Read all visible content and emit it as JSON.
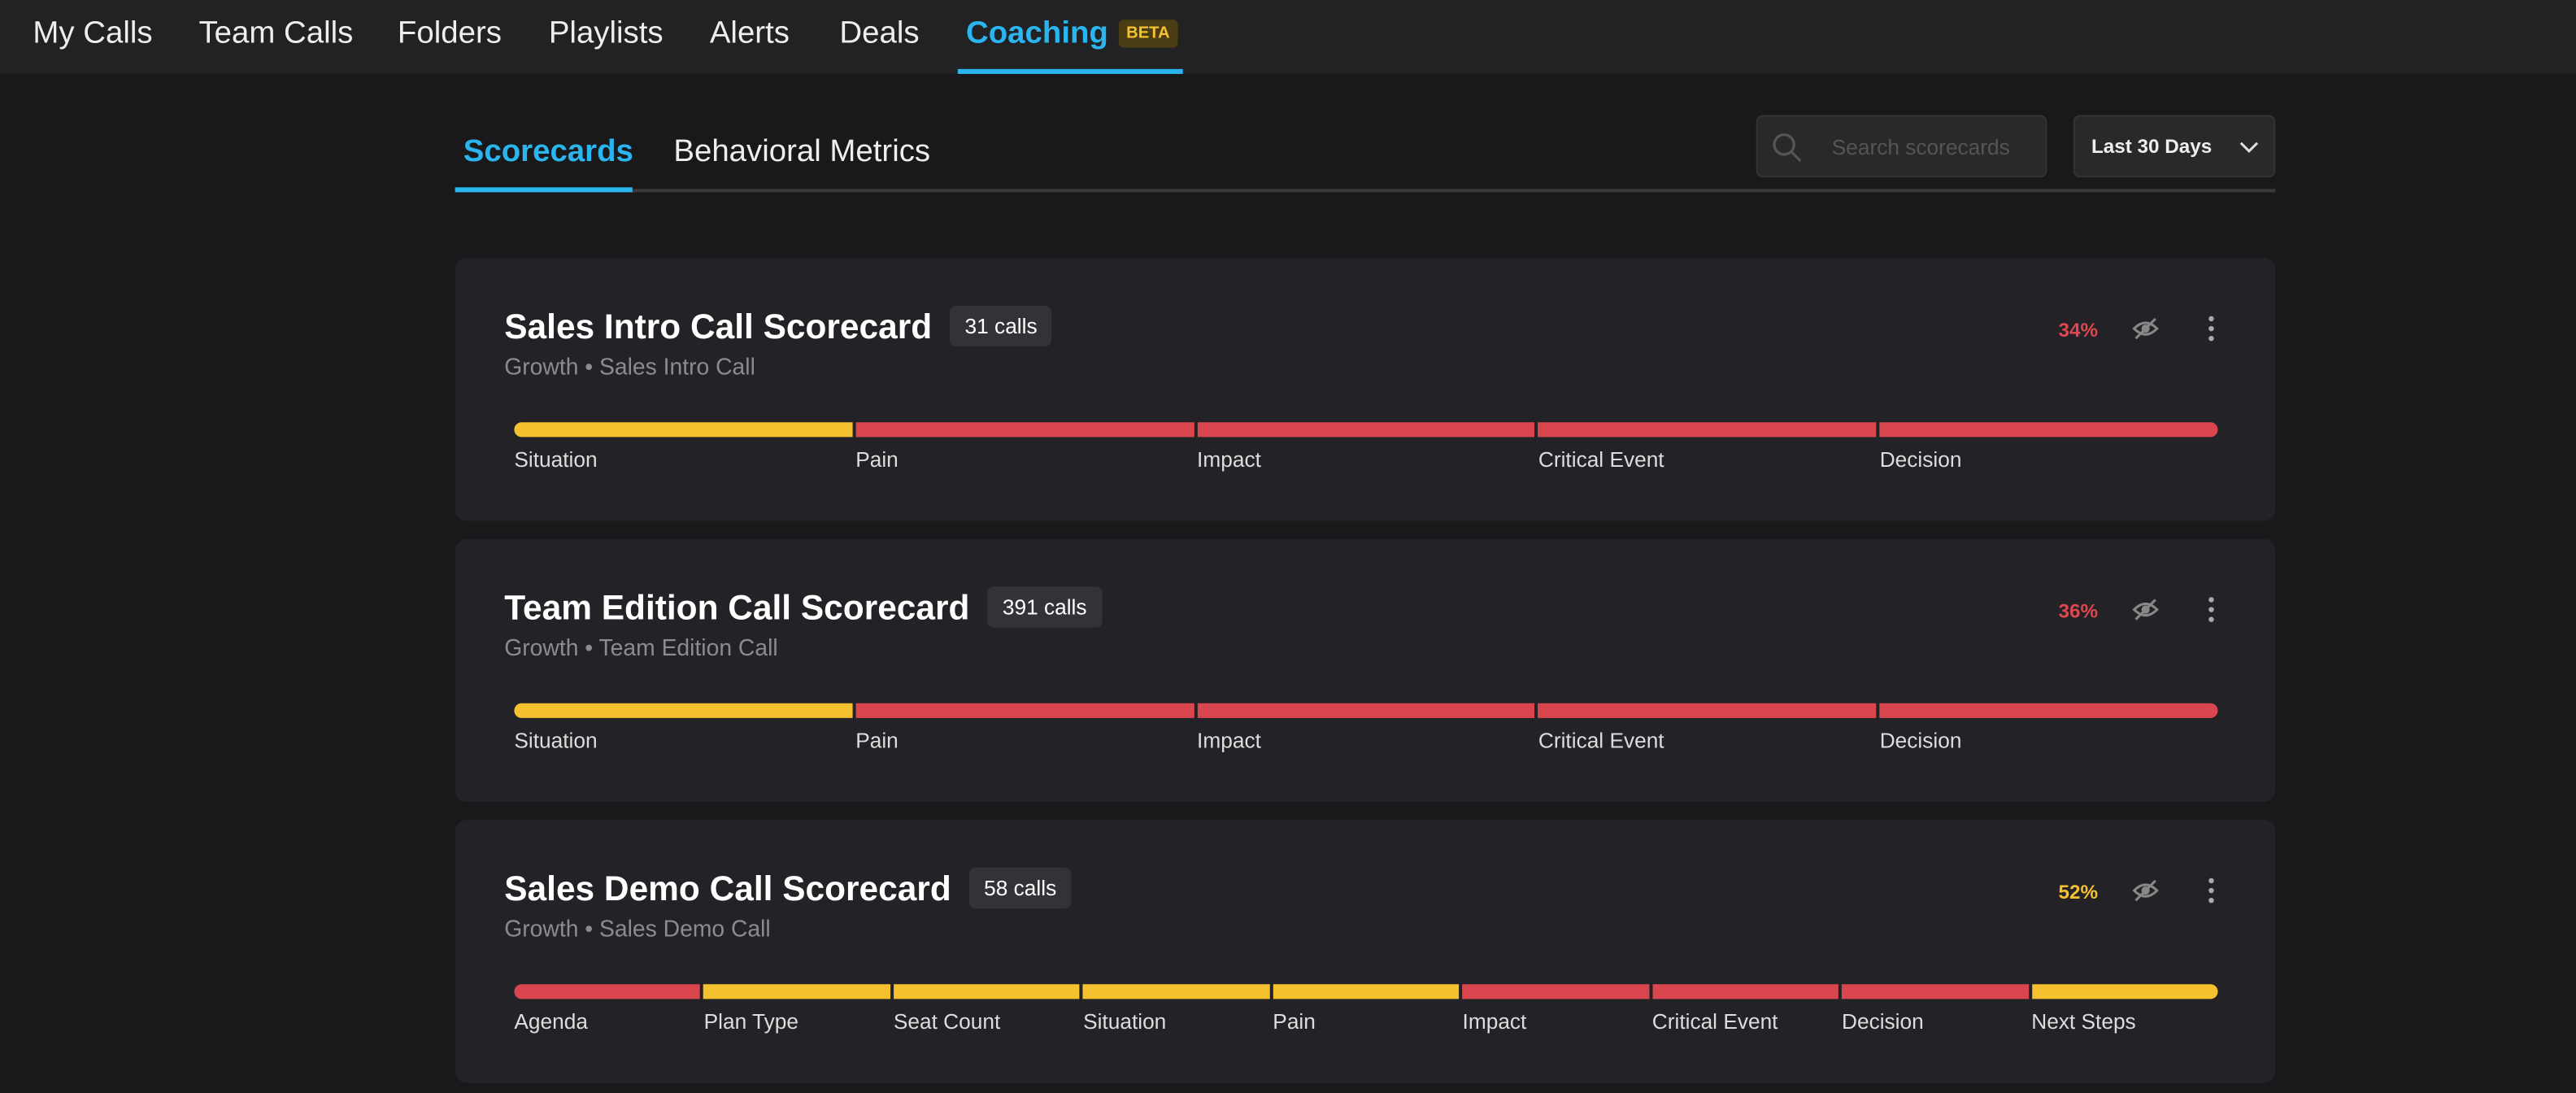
{
  "nav": {
    "items": [
      "My Calls",
      "Team Calls",
      "Folders",
      "Playlists",
      "Alerts",
      "Deals",
      "Coaching"
    ],
    "active": 6,
    "badge": "BETA"
  },
  "tabs": {
    "items": [
      "Scorecards",
      "Behavioral Metrics"
    ],
    "active": 0
  },
  "search": {
    "placeholder": "Search scorecards"
  },
  "date_filter": {
    "label": "Last 30 Days"
  },
  "scorecards": [
    {
      "title": "Sales Intro Call Scorecard",
      "calls": "31 calls",
      "subtitle": "Growth • Sales Intro Call",
      "score": "34%",
      "score_color": "#e0474f",
      "segments": [
        {
          "label": "Situation",
          "color": "#f6c12f"
        },
        {
          "label": "Pain",
          "color": "#d9464e"
        },
        {
          "label": "Impact",
          "color": "#d9464e"
        },
        {
          "label": "Critical Event",
          "color": "#d9464e"
        },
        {
          "label": "Decision",
          "color": "#d9464e"
        }
      ]
    },
    {
      "title": "Team Edition Call Scorecard",
      "calls": "391 calls",
      "subtitle": "Growth • Team Edition Call",
      "score": "36%",
      "score_color": "#e0474f",
      "segments": [
        {
          "label": "Situation",
          "color": "#f6c12f"
        },
        {
          "label": "Pain",
          "color": "#d9464e"
        },
        {
          "label": "Impact",
          "color": "#d9464e"
        },
        {
          "label": "Critical Event",
          "color": "#d9464e"
        },
        {
          "label": "Decision",
          "color": "#d9464e"
        }
      ]
    },
    {
      "title": "Sales Demo Call Scorecard",
      "calls": "58 calls",
      "subtitle": "Growth • Sales Demo Call",
      "score": "52%",
      "score_color": "#f6c12f",
      "segments": [
        {
          "label": "Agenda",
          "color": "#d9464e"
        },
        {
          "label": "Plan Type",
          "color": "#f6c12f"
        },
        {
          "label": "Seat Count",
          "color": "#f6c12f"
        },
        {
          "label": "Situation",
          "color": "#f6c12f"
        },
        {
          "label": "Pain",
          "color": "#f6c12f"
        },
        {
          "label": "Impact",
          "color": "#d9464e"
        },
        {
          "label": "Critical Event",
          "color": "#d9464e"
        },
        {
          "label": "Decision",
          "color": "#d9464e"
        },
        {
          "label": "Next Steps",
          "color": "#f6c12f"
        }
      ]
    }
  ]
}
